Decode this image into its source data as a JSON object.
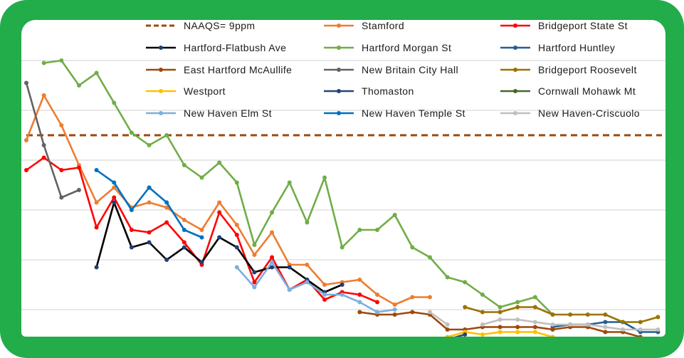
{
  "chart_data": {
    "type": "line",
    "title": "",
    "xlabel": "",
    "ylabel": "",
    "ylim": [
      0.9,
      13.6
    ],
    "grid": true,
    "gridlines": [
      2,
      4,
      6,
      8,
      10,
      12
    ],
    "legend_position": "top",
    "reference_line": {
      "name": "NAAQS= 9ppm",
      "value": 9,
      "color": "#9e480e",
      "style": "dashed"
    },
    "series": [
      {
        "name": "Stamford",
        "color": "#ed7d31",
        "marker": "#ed7d31",
        "values": [
          8.8,
          10.6,
          9.4,
          7.8,
          6.3,
          6.9,
          6.1,
          6.3,
          6.1,
          5.6,
          5.2,
          6.3,
          5.4,
          4.2,
          5.1,
          3.8,
          3.8,
          3.0,
          3.1,
          3.2,
          2.6,
          2.2,
          2.5,
          2.5
        ]
      },
      {
        "name": "Bridgeport State St",
        "color": "#ff0000",
        "marker": "#ff0000",
        "values": [
          7.6,
          8.1,
          7.6,
          7.7,
          5.3,
          6.5,
          5.2,
          5.1,
          5.5,
          4.7,
          3.8,
          5.9,
          5.0,
          3.1,
          4.1,
          2.8,
          3.2,
          2.4,
          2.7,
          2.6,
          2.3
        ]
      },
      {
        "name": "Hartford-Flatbush Ave",
        "color": "#000000",
        "marker": "#1f3f7a",
        "values": [
          null,
          null,
          null,
          null,
          3.7,
          6.3,
          4.5,
          4.7,
          4.0,
          4.5,
          3.9,
          4.9,
          4.5,
          3.5,
          3.7,
          3.7,
          3.2,
          2.7,
          3.0
        ]
      },
      {
        "name": "Hartford Morgan St",
        "color": "#70ad47",
        "marker": "#70ad47",
        "values": [
          null,
          11.9,
          12.0,
          11.0,
          11.5,
          10.3,
          9.1,
          8.6,
          9.0,
          7.8,
          7.3,
          7.9,
          7.1,
          4.6,
          5.9,
          7.1,
          5.5,
          7.3,
          4.5,
          5.2,
          5.2,
          5.8,
          4.5,
          4.1,
          3.3,
          3.1,
          2.6,
          2.1,
          2.3,
          2.5,
          1.8
        ]
      },
      {
        "name": "Hartford Huntley",
        "color": "#255e91",
        "marker": "#255e91",
        "values": [
          null,
          null,
          null,
          null,
          null,
          null,
          null,
          null,
          null,
          null,
          null,
          null,
          null,
          null,
          null,
          null,
          null,
          null,
          null,
          null,
          null,
          null,
          null,
          null,
          null,
          null,
          null,
          null,
          null,
          null,
          1.3,
          1.4,
          1.4,
          1.5,
          1.5,
          1.1,
          1.1
        ]
      },
      {
        "name": "East Hartford McAullife",
        "color": "#9e480e",
        "marker": "#9e480e",
        "values": [
          null,
          null,
          null,
          null,
          null,
          null,
          null,
          null,
          null,
          null,
          null,
          null,
          null,
          null,
          null,
          null,
          null,
          null,
          null,
          1.9,
          1.8,
          1.8,
          1.9,
          1.8,
          1.2,
          1.2,
          1.3,
          1.3,
          1.3,
          1.3,
          1.2,
          1.3,
          1.3,
          1.1,
          1.1,
          0.9
        ]
      },
      {
        "name": "New Britain City Hall",
        "color": "#636363",
        "marker": "#636363",
        "values": [
          11.1,
          8.6,
          6.5,
          6.8
        ]
      },
      {
        "name": "Bridgeport Roosevelt",
        "color": "#997300",
        "marker": "#997300",
        "values": [
          null,
          null,
          null,
          null,
          null,
          null,
          null,
          null,
          null,
          null,
          null,
          null,
          null,
          null,
          null,
          null,
          null,
          null,
          null,
          null,
          null,
          null,
          null,
          null,
          null,
          2.1,
          1.9,
          1.9,
          2.1,
          2.1,
          1.8,
          1.8,
          1.8,
          1.8,
          1.5,
          1.5,
          1.7
        ]
      },
      {
        "name": "Westport",
        "color": "#ffc000",
        "marker": "#ffc000",
        "values": [
          null,
          null,
          null,
          null,
          null,
          null,
          null,
          null,
          null,
          null,
          null,
          null,
          null,
          null,
          null,
          null,
          null,
          null,
          null,
          null,
          null,
          null,
          null,
          null,
          0.9,
          1.1,
          1.0,
          1.1,
          1.1,
          1.1,
          0.9
        ]
      },
      {
        "name": "Thomaston",
        "color": "#264478",
        "marker": "#264478",
        "values": [
          null,
          null,
          null,
          null,
          null,
          null,
          null,
          null,
          null,
          null,
          null,
          null,
          null,
          null,
          null,
          null,
          null,
          null,
          null,
          null,
          null,
          null,
          null,
          null,
          0.8,
          1.0
        ]
      },
      {
        "name": "Cornwall Mohawk Mt",
        "color": "#43682b",
        "marker": "#43682b",
        "values": []
      },
      {
        "name": "New Haven Elm St",
        "color": "#7cafdd",
        "marker": "#7cafdd",
        "values": [
          null,
          null,
          null,
          null,
          null,
          null,
          null,
          null,
          null,
          null,
          null,
          null,
          3.7,
          2.9,
          3.9,
          2.8,
          3.1,
          2.6,
          2.6,
          2.3,
          1.9,
          2.0
        ]
      },
      {
        "name": "New Haven Temple St",
        "color": "#0070c0",
        "marker": "#0070c0",
        "values": [
          null,
          null,
          null,
          null,
          7.6,
          7.1,
          6.0,
          6.9,
          6.3,
          5.2,
          4.9
        ]
      },
      {
        "name": "New Haven-Criscuolo",
        "color": "#bfbfbf",
        "marker": "#bfbfbf",
        "values": [
          null,
          null,
          null,
          null,
          null,
          null,
          null,
          null,
          null,
          null,
          null,
          null,
          null,
          null,
          null,
          null,
          null,
          null,
          null,
          null,
          null,
          null,
          null,
          1.9,
          1.4,
          null,
          1.4,
          1.6,
          1.6,
          1.5,
          1.4,
          1.4,
          1.4,
          1.3,
          1.2,
          1.2,
          1.2
        ]
      }
    ]
  }
}
